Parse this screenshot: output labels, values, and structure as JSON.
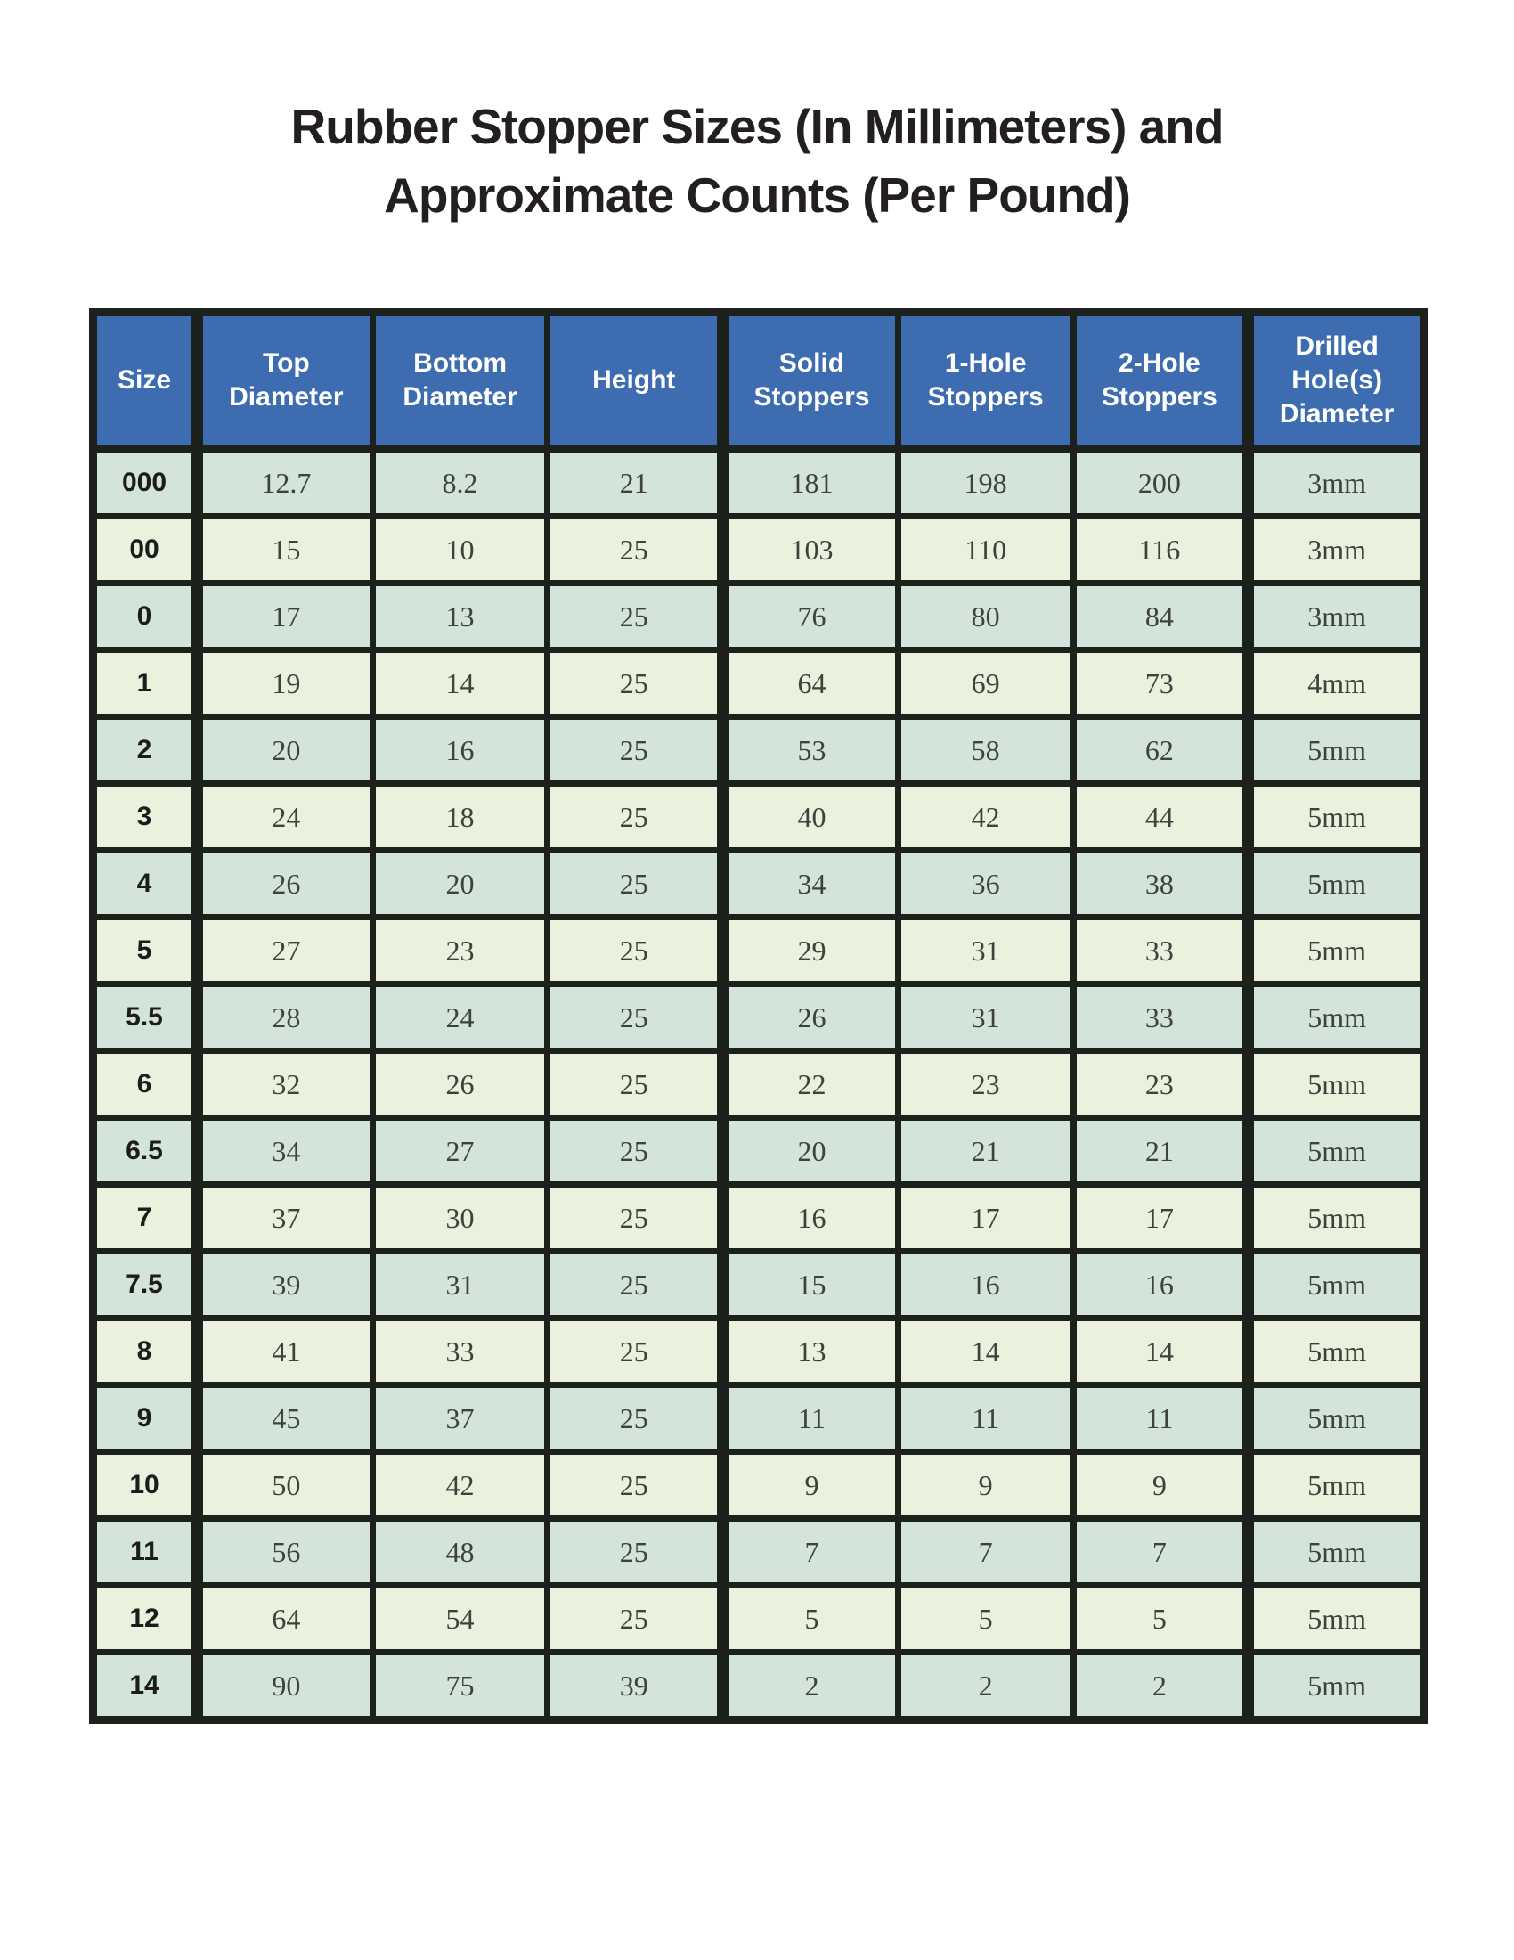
{
  "title": {
    "line1": "Rubber Stopper Sizes (In Millimeters) and",
    "line2": "Approximate Counts (Per Pound)"
  },
  "table": {
    "columns": [
      "Size",
      "Top Diameter",
      "Bottom Diameter",
      "Height",
      "Solid Stoppers",
      "1-Hole Stoppers",
      "2-Hole Stoppers",
      "Drilled Hole(s) Diameter"
    ],
    "rows": [
      [
        "000",
        "12.7",
        "8.2",
        "21",
        "181",
        "198",
        "200",
        "3mm"
      ],
      [
        "00",
        "15",
        "10",
        "25",
        "103",
        "110",
        "116",
        "3mm"
      ],
      [
        "0",
        "17",
        "13",
        "25",
        "76",
        "80",
        "84",
        "3mm"
      ],
      [
        "1",
        "19",
        "14",
        "25",
        "64",
        "69",
        "73",
        "4mm"
      ],
      [
        "2",
        "20",
        "16",
        "25",
        "53",
        "58",
        "62",
        "5mm"
      ],
      [
        "3",
        "24",
        "18",
        "25",
        "40",
        "42",
        "44",
        "5mm"
      ],
      [
        "4",
        "26",
        "20",
        "25",
        "34",
        "36",
        "38",
        "5mm"
      ],
      [
        "5",
        "27",
        "23",
        "25",
        "29",
        "31",
        "33",
        "5mm"
      ],
      [
        "5.5",
        "28",
        "24",
        "25",
        "26",
        "31",
        "33",
        "5mm"
      ],
      [
        "6",
        "32",
        "26",
        "25",
        "22",
        "23",
        "23",
        "5mm"
      ],
      [
        "6.5",
        "34",
        "27",
        "25",
        "20",
        "21",
        "21",
        "5mm"
      ],
      [
        "7",
        "37",
        "30",
        "25",
        "16",
        "17",
        "17",
        "5mm"
      ],
      [
        "7.5",
        "39",
        "31",
        "25",
        "15",
        "16",
        "16",
        "5mm"
      ],
      [
        "8",
        "41",
        "33",
        "25",
        "13",
        "14",
        "14",
        "5mm"
      ],
      [
        "9",
        "45",
        "37",
        "25",
        "11",
        "11",
        "11",
        "5mm"
      ],
      [
        "10",
        "50",
        "42",
        "25",
        "9",
        "9",
        "9",
        "5mm"
      ],
      [
        "11",
        "56",
        "48",
        "25",
        "7",
        "7",
        "7",
        "5mm"
      ],
      [
        "12",
        "64",
        "54",
        "25",
        "5",
        "5",
        "5",
        "5mm"
      ],
      [
        "14",
        "90",
        "75",
        "39",
        "2",
        "2",
        "2",
        "5mm"
      ]
    ],
    "colors": {
      "header_bg": "#3e6cb0",
      "header_text": "#ffffff",
      "row_alt_teal": "#d3e4db",
      "row_alt_cream": "#eaf1dd",
      "grid_border": "#1d211c",
      "title_text": "#231f20",
      "cell_text": "#3d423c"
    }
  }
}
